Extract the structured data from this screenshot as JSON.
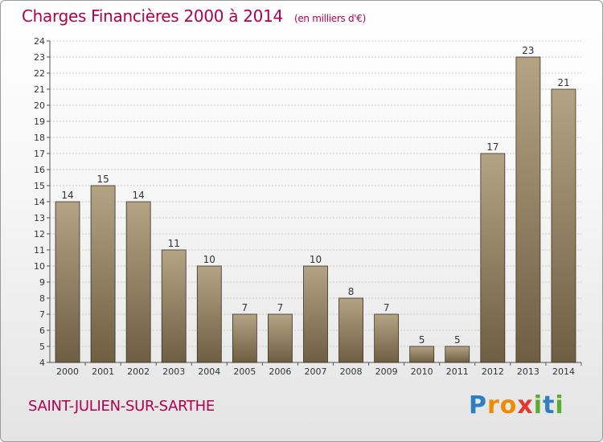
{
  "title": "Charges Financières 2000 à 2014",
  "unit_note": "(en milliers d'€)",
  "commune": "SAINT-JULIEN-SUR-SARTHE",
  "logo": {
    "letters": [
      "P",
      "r",
      "o",
      "x",
      "i",
      "t",
      "i"
    ],
    "colors": [
      "#2c7fc1",
      "#f08a00",
      "#f08a00",
      "#e2382f",
      "#58ad2f",
      "#2c7fc1",
      "#58ad2f"
    ]
  },
  "colors": {
    "title": "#b0004f",
    "bar_top": "#b4a384",
    "bar_bottom": "#6f5e42",
    "grid": "#c8c8c8"
  },
  "chart_data": {
    "type": "bar",
    "categories": [
      "2000",
      "2001",
      "2002",
      "2003",
      "2004",
      "2005",
      "2006",
      "2007",
      "2008",
      "2009",
      "2010",
      "2011",
      "2012",
      "2013",
      "2014"
    ],
    "values": [
      14,
      15,
      14,
      11,
      10,
      7,
      7,
      10,
      8,
      7,
      5,
      5,
      17,
      23,
      21
    ],
    "ylim": [
      4,
      24
    ],
    "yticks": [
      4,
      5,
      6,
      7,
      8,
      9,
      10,
      11,
      12,
      13,
      14,
      15,
      16,
      17,
      18,
      19,
      20,
      21,
      22,
      23,
      24
    ],
    "grid": true,
    "data_labels": true
  }
}
